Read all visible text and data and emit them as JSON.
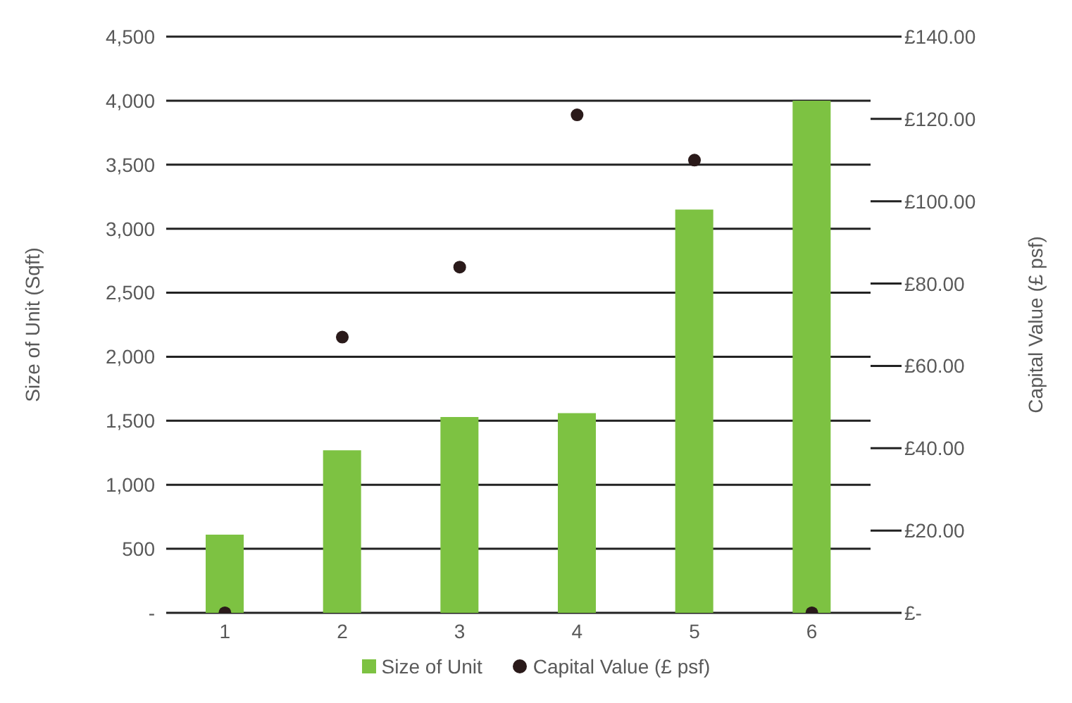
{
  "chart_data": {
    "type": "bar",
    "categories": [
      "1",
      "2",
      "3",
      "4",
      "5",
      "6"
    ],
    "series": [
      {
        "name": "Size of Unit",
        "color": "#7dc242",
        "values": [
          610,
          1270,
          1530,
          1560,
          3150,
          4000
        ]
      },
      {
        "name": "Capital Value (£ psf)",
        "type": "scatter",
        "axis": "y2",
        "color": "#2a1a1a",
        "values": [
          0,
          67,
          84,
          121,
          110,
          0
        ]
      }
    ],
    "ylabel": "Size of Unit (Sqft)",
    "y2label": "Capital Value (£ psf)",
    "ylim": [
      0,
      4500
    ],
    "yticks": [
      {
        "value": 0,
        "label": "-"
      },
      {
        "value": 500,
        "label": "500"
      },
      {
        "value": 1000,
        "label": "1,000"
      },
      {
        "value": 1500,
        "label": "1,500"
      },
      {
        "value": 2000,
        "label": "2,000"
      },
      {
        "value": 2500,
        "label": "2,500"
      },
      {
        "value": 3000,
        "label": "3,000"
      },
      {
        "value": 3500,
        "label": "3,500"
      },
      {
        "value": 4000,
        "label": "4,000"
      },
      {
        "value": 4500,
        "label": "4,500"
      }
    ],
    "y2lim": [
      0,
      140
    ],
    "y2ticks": [
      {
        "value": 0,
        "label": "£-"
      },
      {
        "value": 20,
        "label": "£20.00"
      },
      {
        "value": 40,
        "label": "£40.00"
      },
      {
        "value": 60,
        "label": "£60.00"
      },
      {
        "value": 80,
        "label": "£80.00"
      },
      {
        "value": 100,
        "label": "£100.00"
      },
      {
        "value": 120,
        "label": "£120.00"
      },
      {
        "value": 140,
        "label": "£140.00"
      }
    ],
    "grid": "y",
    "legend": "bottom",
    "marker": "circle"
  }
}
